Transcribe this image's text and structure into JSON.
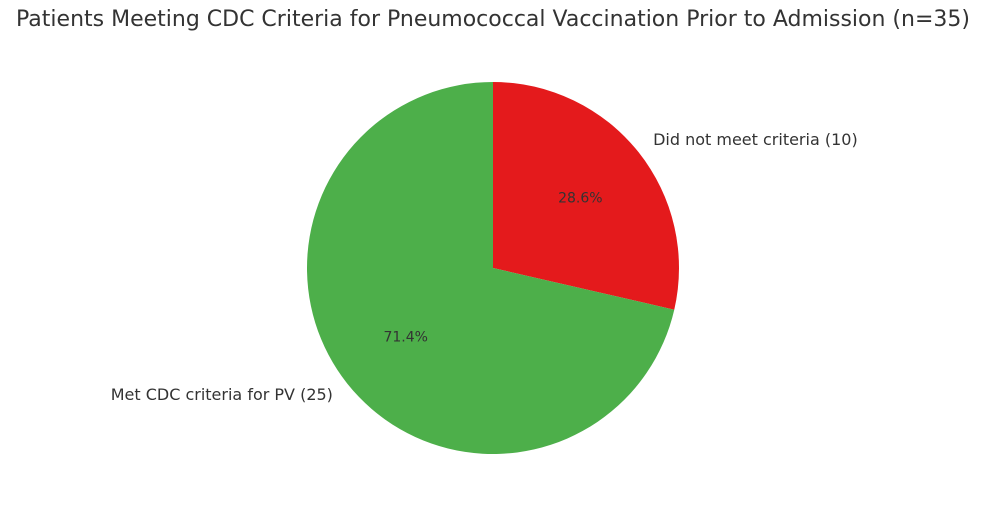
{
  "chart_data": {
    "type": "pie",
    "title": "Patients Meeting CDC Criteria for Pneumococcal Vaccination Prior to Admission (n=35)",
    "categories": [
      "Did not meet criteria (10)",
      "Met CDC criteria for PV (25)"
    ],
    "values": [
      28.6,
      71.4
    ],
    "value_labels": [
      "28.6%",
      "71.4%"
    ],
    "colors": [
      "#e41a1c",
      "#4daf4a"
    ]
  }
}
